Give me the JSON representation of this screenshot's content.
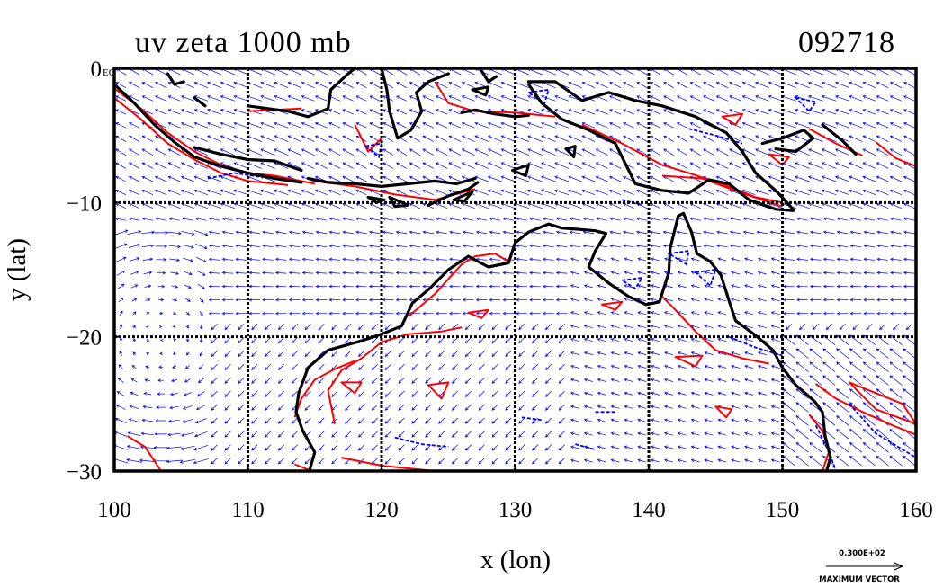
{
  "chart_data": {
    "type": "vector-contour-map",
    "title": "uv zeta 1000 mb",
    "timestamp": "092718",
    "xlabel": "x (lon)",
    "ylabel": "y (lat)",
    "x_ticks": [
      100,
      110,
      120,
      130,
      140,
      150,
      160
    ],
    "y_ticks": [
      0,
      -10,
      -20,
      -30
    ],
    "y_tick_labels": [
      "0",
      "−10",
      "−20",
      "−30"
    ],
    "corner_label": "EQ",
    "xlim": [
      100,
      160
    ],
    "ylim": [
      -30,
      0
    ],
    "grid": true,
    "vector_color": "#0000ff",
    "positive_contour_color": "#ff0000",
    "negative_contour_color": "#0000ff",
    "coastline_color": "#000000",
    "max_vector_value": "0.300E+02",
    "max_vector_label": "MAXIMUM VECTOR"
  }
}
